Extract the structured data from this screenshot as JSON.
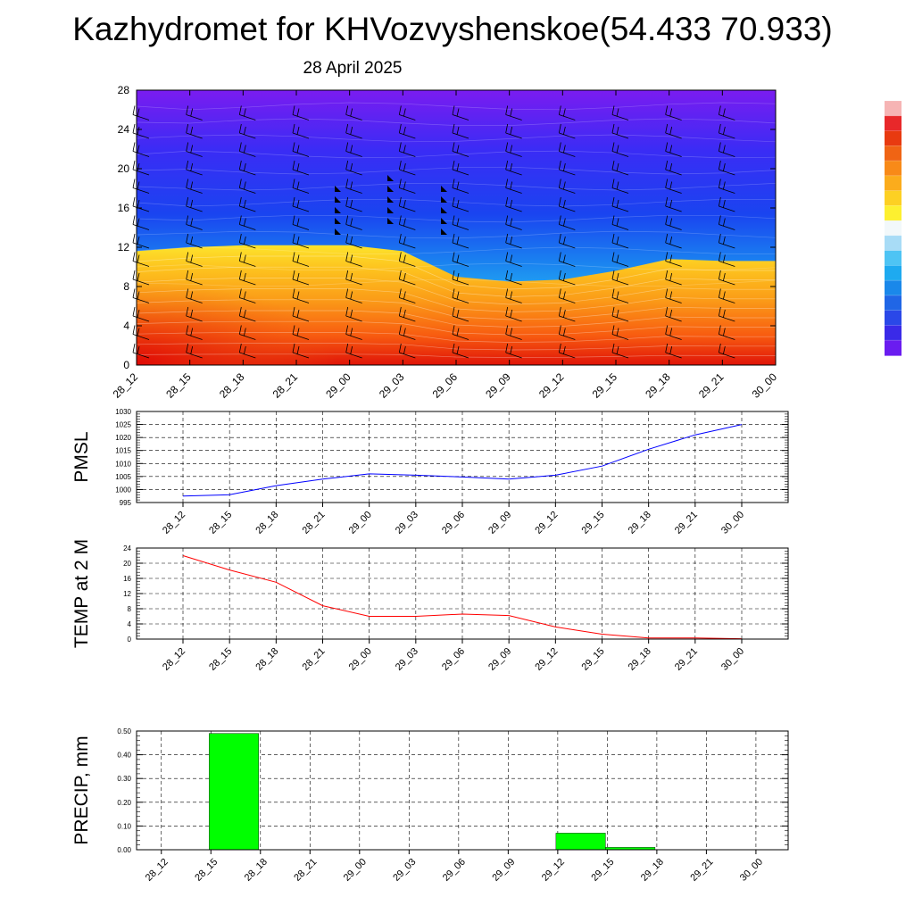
{
  "title": "Kazhydromet for KHVozvyshenskoe(54.433 70.933)",
  "date": "28 April 2025",
  "time_labels": [
    "28_12",
    "28_15",
    "28_18",
    "28_21",
    "29_00",
    "29_03",
    "29_06",
    "29_09",
    "29_12",
    "29_15",
    "29_18",
    "29_21",
    "30_00"
  ],
  "colors": {
    "pmsl_line": "#0000ff",
    "temp_line": "#ff0000",
    "precip_bar": "#00ff00",
    "precip_bar_edge": "#000000"
  },
  "chart_data": [
    {
      "type": "heatmap",
      "title": "",
      "xlabel": "",
      "ylabel": "",
      "x": [
        "28_12",
        "28_15",
        "28_18",
        "28_21",
        "29_00",
        "29_03",
        "29_06",
        "29_09",
        "29_12",
        "29_15",
        "29_18",
        "29_21",
        "30_00"
      ],
      "ylim": [
        0,
        28
      ],
      "yticks": [
        "0",
        "4",
        "8",
        "12",
        "16",
        "20",
        "24",
        "28"
      ],
      "warm_layer_top": [
        11.6,
        12.0,
        12.2,
        12.2,
        12.2,
        11.6,
        9.0,
        8.5,
        8.7,
        9.6,
        10.8,
        10.6,
        10.6
      ],
      "colorbar": "blue-violet (top) to red (bottom), unlabelled",
      "wind_barbs": "barbs at each time column and level; pennants near 14-18 at 28_21 to 29_06"
    },
    {
      "type": "line",
      "title": "",
      "xlabel": "",
      "ylabel": "PMSL",
      "x": [
        "28_12",
        "28_15",
        "28_18",
        "28_21",
        "29_00",
        "29_03",
        "29_06",
        "29_09",
        "29_12",
        "29_15",
        "29_18",
        "29_21",
        "30_00"
      ],
      "ylim": [
        995,
        1030
      ],
      "yticks": [
        "995",
        "1000",
        "1005",
        "1010",
        "1015",
        "1020",
        "1025",
        "1030"
      ],
      "series": [
        {
          "values": [
            997.5,
            998,
            1001.5,
            1004,
            1006,
            1005.5,
            1004.8,
            1004,
            1005.5,
            1009,
            1015.5,
            1021,
            1025
          ]
        }
      ],
      "grid": true
    },
    {
      "type": "line",
      "title": "",
      "xlabel": "",
      "ylabel": "TEMP at 2 M",
      "x": [
        "28_12",
        "28_15",
        "28_18",
        "28_21",
        "29_00",
        "29_03",
        "29_06",
        "29_09",
        "29_12",
        "29_15",
        "29_18",
        "29_21",
        "30_00"
      ],
      "ylim": [
        0,
        24
      ],
      "yticks": [
        "0",
        "4",
        "8",
        "12",
        "16",
        "20",
        "24"
      ],
      "series": [
        {
          "values": [
            22,
            18.2,
            15,
            8.8,
            6,
            6,
            6.6,
            6.2,
            3.2,
            1.3,
            0.3,
            0.3,
            0.1
          ]
        }
      ],
      "grid": true
    },
    {
      "type": "bar",
      "title": "",
      "xlabel": "",
      "ylabel": "PRECIP, mm",
      "categories": [
        "28_12",
        "28_15",
        "28_18",
        "28_21",
        "29_00",
        "29_03",
        "29_06",
        "29_09",
        "29_12",
        "29_15",
        "29_18",
        "29_21",
        "30_00"
      ],
      "values": [
        0,
        0.49,
        0,
        0,
        0,
        0,
        0,
        0,
        0.07,
        0.01,
        0,
        0,
        0
      ],
      "ylim": [
        0,
        0.5
      ],
      "yticks": [
        "0.00",
        "0.10",
        "0.20",
        "0.30",
        "0.40",
        "0.50"
      ],
      "grid": true
    }
  ]
}
